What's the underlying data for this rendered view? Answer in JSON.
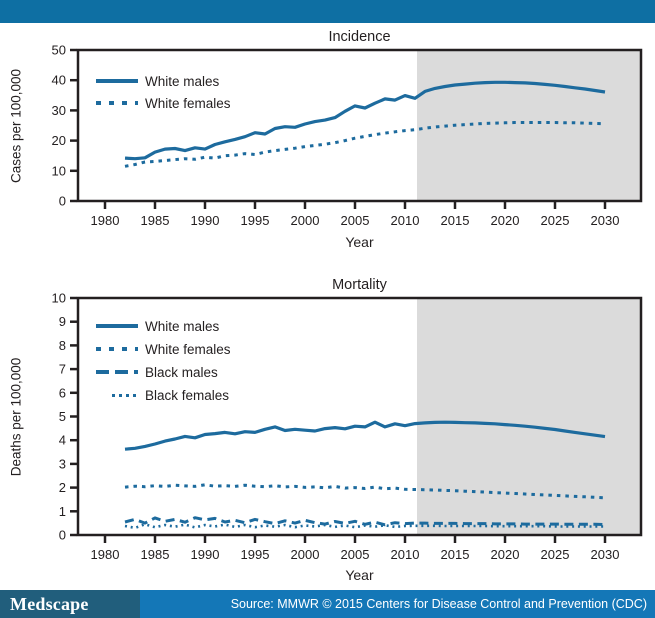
{
  "branding": {
    "logo_text": "Medscape",
    "source_text": "Source: MMWR © 2015 Centers for Disease Control and Prevention (CDC)"
  },
  "colors": {
    "line": "#1d6b9e",
    "projection_bg": "#dbdbdb",
    "axis": "#231f20",
    "text": "#231f20",
    "topbar": "#0e6fa3",
    "logo_bg": "#215e7c",
    "source_bg": "#1477b7"
  },
  "chart_data": [
    {
      "type": "line",
      "title": "Incidence",
      "xlabel": "Year",
      "ylabel": "Cases per 100,000",
      "xlim": [
        1977.3,
        2033.6
      ],
      "ylim": [
        0,
        50
      ],
      "xticks": [
        1980,
        1985,
        1990,
        1995,
        2000,
        2005,
        2010,
        2015,
        2020,
        2025,
        2030
      ],
      "yticks": [
        0,
        10,
        20,
        30,
        40,
        50
      ],
      "grid": false,
      "legend_position": "top-left",
      "projection_region": {
        "start": 2011.2,
        "end": 2033.6
      },
      "x_start": 1982,
      "x_step": 1,
      "series": [
        {
          "name": "White males",
          "style": "solid",
          "values": [
            14.2,
            14.0,
            14.3,
            16.2,
            17.2,
            17.4,
            16.7,
            17.6,
            17.2,
            18.7,
            19.6,
            20.4,
            21.3,
            22.6,
            22.2,
            24.0,
            24.6,
            24.4,
            25.5,
            26.3,
            26.8,
            27.6,
            29.7,
            31.5,
            30.8,
            32.4,
            33.8,
            33.4,
            34.9,
            34.0,
            36.3,
            37.3,
            37.9,
            38.4,
            38.7,
            39.0,
            39.2,
            39.3,
            39.3,
            39.2,
            39.1,
            38.9,
            38.6,
            38.3,
            37.9,
            37.5,
            37.1,
            36.6,
            36.1
          ]
        },
        {
          "name": "White females",
          "style": "square-dash",
          "values": [
            11.5,
            12.1,
            12.9,
            13.1,
            13.4,
            13.7,
            14.0,
            13.8,
            14.5,
            14.2,
            15.0,
            15.2,
            15.7,
            15.4,
            16.2,
            16.7,
            17.1,
            17.5,
            18.0,
            18.4,
            18.8,
            19.3,
            20.0,
            20.8,
            21.4,
            22.0,
            22.5,
            22.9,
            23.3,
            23.6,
            24.1,
            24.5,
            24.8,
            25.1,
            25.3,
            25.5,
            25.7,
            25.8,
            25.9,
            26.0,
            26.0,
            26.0,
            26.0,
            26.0,
            25.9,
            25.9,
            25.8,
            25.7,
            25.6
          ]
        }
      ]
    },
    {
      "type": "line",
      "title": "Mortality",
      "xlabel": "Year",
      "ylabel": "Deaths per 100,000",
      "xlim": [
        1977.3,
        2033.6
      ],
      "ylim": [
        0,
        10
      ],
      "xticks": [
        1980,
        1985,
        1990,
        1995,
        2000,
        2005,
        2010,
        2015,
        2020,
        2025,
        2030
      ],
      "yticks": [
        0,
        1,
        2,
        3,
        4,
        5,
        6,
        7,
        8,
        9,
        10
      ],
      "grid": false,
      "legend_position": "top-left",
      "projection_region": {
        "start": 2011.2,
        "end": 2033.6
      },
      "x_start": 1982,
      "x_step": 1,
      "series": [
        {
          "name": "White males",
          "style": "solid",
          "values": [
            3.62,
            3.66,
            3.74,
            3.84,
            3.96,
            4.05,
            4.16,
            4.1,
            4.24,
            4.28,
            4.33,
            4.27,
            4.36,
            4.33,
            4.46,
            4.56,
            4.41,
            4.46,
            4.42,
            4.39,
            4.49,
            4.53,
            4.48,
            4.59,
            4.56,
            4.76,
            4.56,
            4.69,
            4.61,
            4.7,
            4.73,
            4.75,
            4.76,
            4.75,
            4.74,
            4.73,
            4.71,
            4.69,
            4.66,
            4.63,
            4.59,
            4.55,
            4.5,
            4.45,
            4.39,
            4.33,
            4.27,
            4.21,
            4.15
          ]
        },
        {
          "name": "White females",
          "style": "square-dash",
          "values": [
            2.02,
            2.06,
            2.04,
            2.08,
            2.05,
            2.1,
            2.07,
            2.05,
            2.12,
            2.06,
            2.08,
            2.05,
            2.1,
            2.06,
            2.04,
            2.08,
            2.03,
            2.05,
            2.01,
            2.03,
            1.99,
            2.05,
            1.98,
            2.0,
            1.96,
            2.02,
            1.95,
            1.98,
            1.93,
            1.92,
            1.91,
            1.9,
            1.88,
            1.87,
            1.85,
            1.83,
            1.81,
            1.79,
            1.77,
            1.75,
            1.73,
            1.71,
            1.69,
            1.67,
            1.65,
            1.63,
            1.61,
            1.59,
            1.57
          ]
        },
        {
          "name": "Black males",
          "style": "long-dash",
          "values": [
            0.55,
            0.66,
            0.5,
            0.72,
            0.58,
            0.66,
            0.54,
            0.73,
            0.64,
            0.7,
            0.55,
            0.62,
            0.52,
            0.66,
            0.56,
            0.48,
            0.6,
            0.5,
            0.62,
            0.52,
            0.46,
            0.57,
            0.49,
            0.58,
            0.45,
            0.54,
            0.43,
            0.52,
            0.48,
            0.5,
            0.5,
            0.49,
            0.49,
            0.49,
            0.48,
            0.48,
            0.48,
            0.47,
            0.47,
            0.47,
            0.46,
            0.46,
            0.46,
            0.46,
            0.45,
            0.45,
            0.45,
            0.45,
            0.44
          ]
        },
        {
          "name": "Black females",
          "style": "dot",
          "values": [
            0.38,
            0.3,
            0.45,
            0.33,
            0.42,
            0.35,
            0.44,
            0.32,
            0.42,
            0.36,
            0.44,
            0.34,
            0.42,
            0.33,
            0.4,
            0.35,
            0.42,
            0.33,
            0.4,
            0.36,
            0.42,
            0.34,
            0.4,
            0.33,
            0.4,
            0.35,
            0.41,
            0.34,
            0.38,
            0.39,
            0.39,
            0.39,
            0.38,
            0.38,
            0.38,
            0.38,
            0.38,
            0.37,
            0.37,
            0.37,
            0.37,
            0.37,
            0.37,
            0.36,
            0.36,
            0.36,
            0.36,
            0.36,
            0.36
          ]
        }
      ]
    }
  ]
}
